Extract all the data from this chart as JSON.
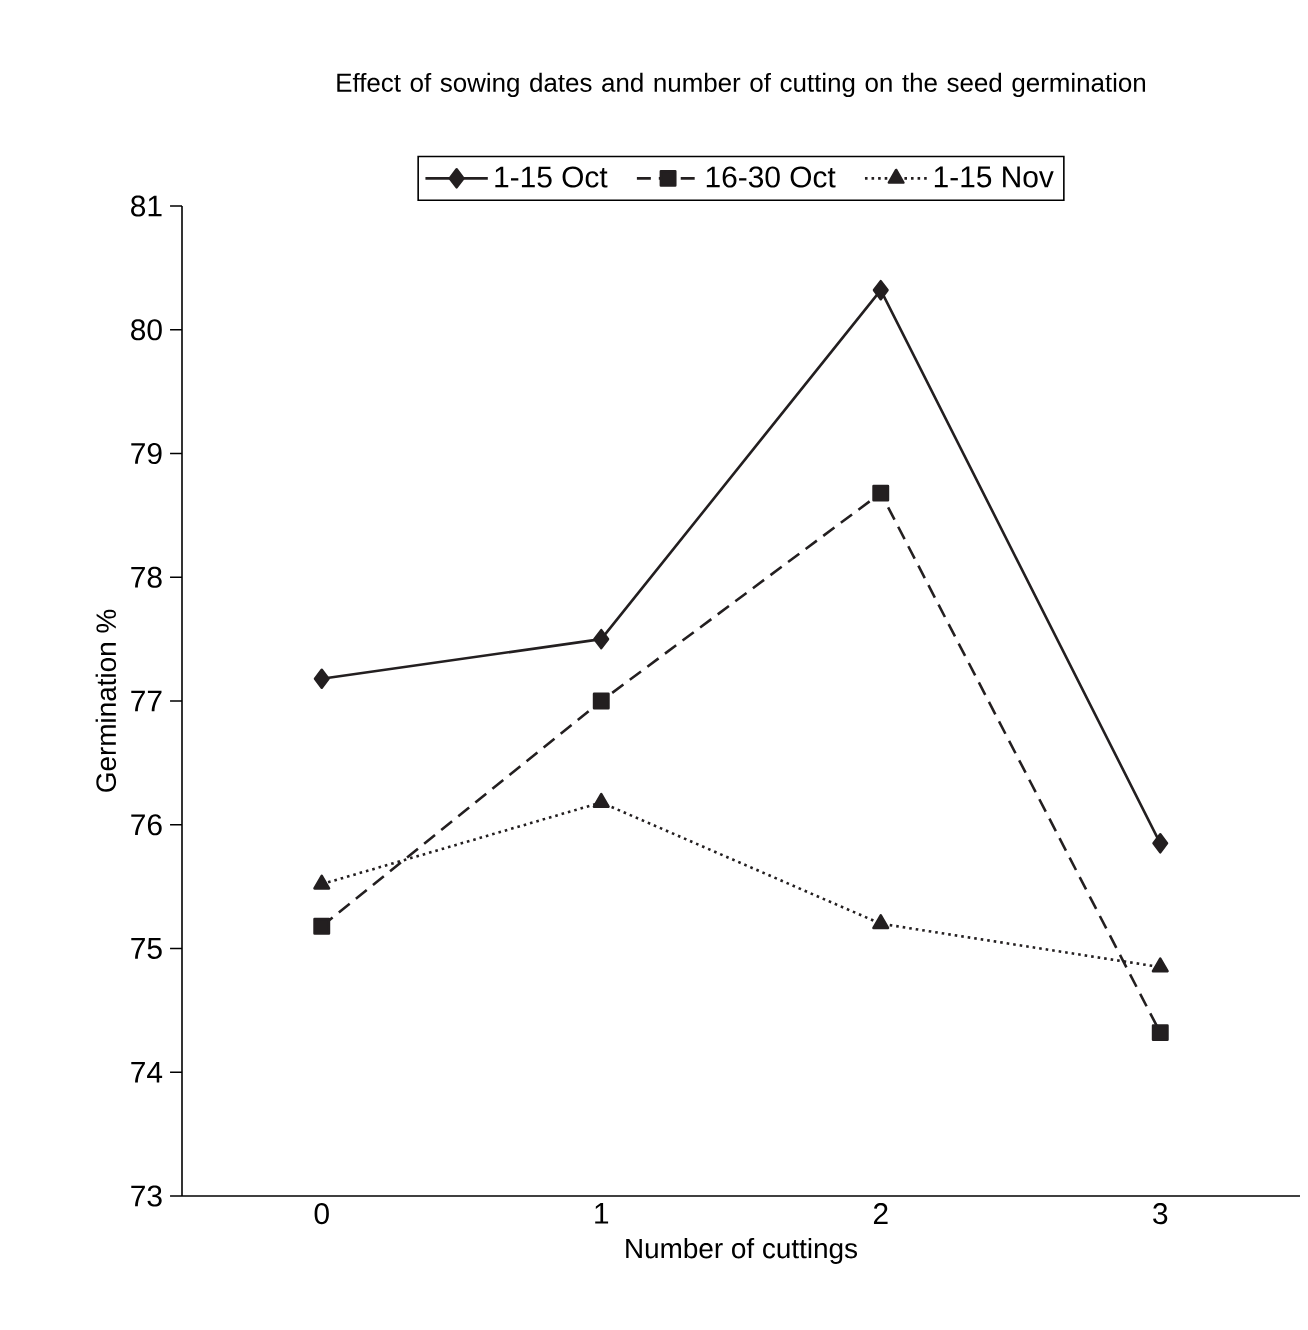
{
  "chart_data": {
    "type": "line",
    "title": "Effect of sowing dates and number of cutting on the seed germination",
    "xlabel": "Number of cuttings",
    "ylabel": "Germination %",
    "categories": [
      "0",
      "1",
      "2",
      "3"
    ],
    "series": [
      {
        "name": "1-15 Oct",
        "color": "#231f20",
        "marker": "diamond",
        "line_style": "solid",
        "values": [
          77.18,
          77.5,
          80.32,
          75.85
        ]
      },
      {
        "name": "16-30 Oct",
        "color": "#231f20",
        "marker": "square",
        "line_style": "dashed",
        "values": [
          75.18,
          77.0,
          78.68,
          74.32
        ]
      },
      {
        "name": "1-15 Nov",
        "color": "#231f20",
        "marker": "triangle",
        "line_style": "dotted",
        "values": [
          75.52,
          76.18,
          75.2,
          74.85
        ]
      }
    ],
    "ylim": [
      73,
      81
    ],
    "yticks": [
      73,
      74,
      75,
      76,
      77,
      78,
      79,
      80,
      81
    ],
    "grid": false,
    "legend": "top"
  }
}
